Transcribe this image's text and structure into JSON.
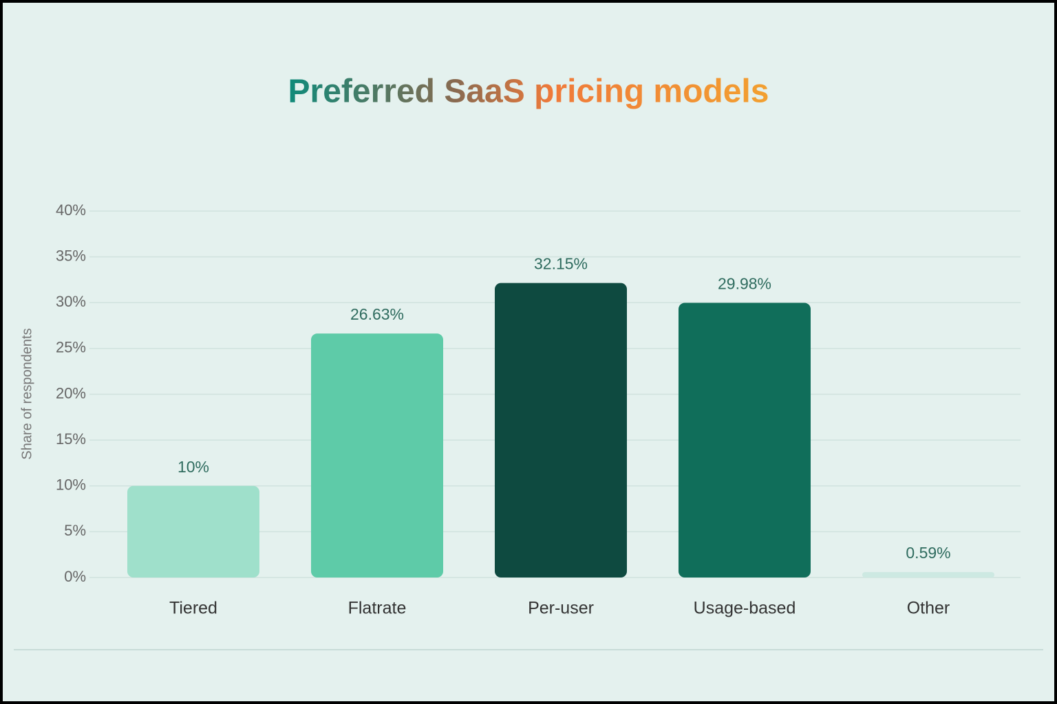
{
  "chart_data": {
    "type": "bar",
    "title": "Preferred SaaS pricing models",
    "y_label": "Share of respondents",
    "categories": [
      "Tiered",
      "Flatrate",
      "Per-user",
      "Usage-based",
      "Other"
    ],
    "values": [
      10,
      26.63,
      32.15,
      29.98,
      0.59
    ],
    "value_labels": [
      "10%",
      "26.63%",
      "32.15%",
      "29.98%",
      "0.59%"
    ],
    "colors": [
      "#9fe0cb",
      "#5ecba8",
      "#0e4a40",
      "#106e5a",
      "#cde9e2"
    ],
    "ylim": [
      0,
      40
    ],
    "yticks": [
      {
        "value": 0,
        "label": "0%"
      },
      {
        "value": 5,
        "label": "5%"
      },
      {
        "value": 10,
        "label": "10%"
      },
      {
        "value": 15,
        "label": "15%"
      },
      {
        "value": 20,
        "label": "20%"
      },
      {
        "value": 25,
        "label": "25%"
      },
      {
        "value": 30,
        "label": "30%"
      },
      {
        "value": 35,
        "label": "35%"
      },
      {
        "value": 40,
        "label": "40%"
      }
    ],
    "grid": true
  }
}
